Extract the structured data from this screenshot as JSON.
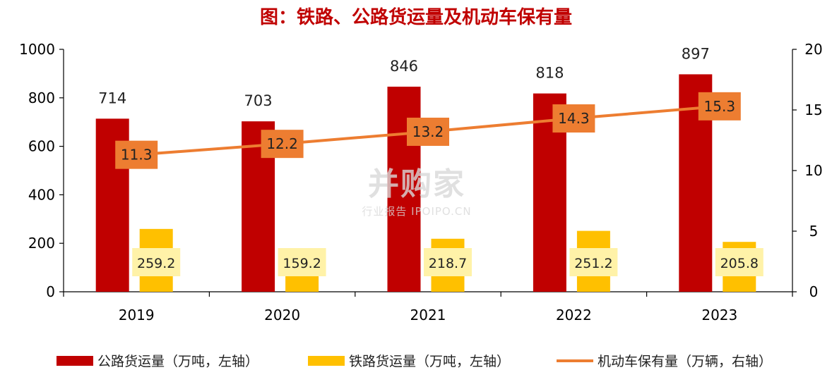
{
  "title": "图：铁路、公路货运量及机动车保有量",
  "watermark": {
    "main": "并购家",
    "sub": "行业报告 IPOIPO.CN"
  },
  "colors": {
    "road": "#c00000",
    "rail": "#ffc000",
    "vehicle": "#ed7d31",
    "vehicle_label_bg": "#ed7d31",
    "rail_label_bg": "#fff2a8"
  },
  "legend": {
    "road": "公路货运量（万吨，左轴）",
    "rail": "铁路货运量（万吨，左轴）",
    "vehicle": "机动车保有量（万辆，右轴）"
  },
  "chart_data": {
    "type": "bar",
    "categories": [
      "2019",
      "2020",
      "2021",
      "2022",
      "2023"
    ],
    "series": [
      {
        "name": "公路货运量（万吨，左轴）",
        "type": "bar",
        "axis": "left",
        "values": [
          714,
          703,
          846,
          818,
          897
        ]
      },
      {
        "name": "铁路货运量（万吨，左轴）",
        "type": "bar",
        "axis": "left",
        "values": [
          259.2,
          159.2,
          218.7,
          251.2,
          205.8
        ]
      },
      {
        "name": "机动车保有量（万辆，右轴）",
        "type": "line",
        "axis": "right",
        "values": [
          11.3,
          12.2,
          13.2,
          14.3,
          15.3
        ]
      }
    ],
    "y_left": {
      "range": [
        0,
        1000
      ],
      "ticks": [
        "0",
        "200",
        "400",
        "600",
        "800",
        "1000"
      ]
    },
    "y_right": {
      "range": [
        0,
        20
      ],
      "ticks": [
        "0",
        "5",
        "10",
        "15",
        "20"
      ]
    },
    "legend_position": "bottom",
    "grid": false
  }
}
